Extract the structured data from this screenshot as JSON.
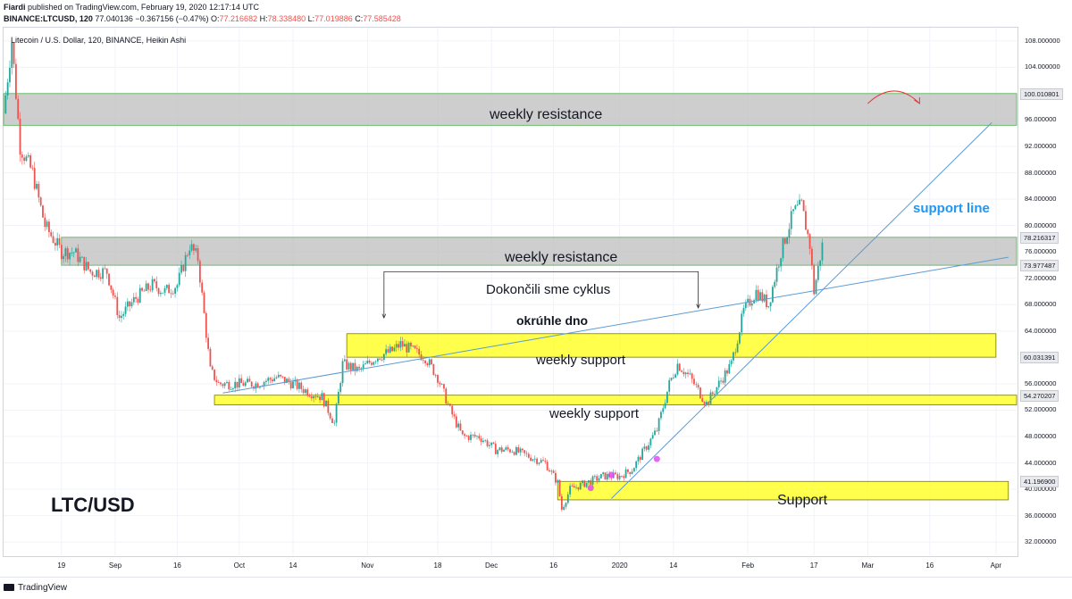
{
  "header": {
    "publisher": "Fiardi",
    "published_text": " published on TradingView.com, February 19, 2020 12:17:14 UTC",
    "symbol": "BINANCE:LTCUSD, 120",
    "last": "77.040136",
    "change": "−0.367156 (−0.47%)",
    "open_label": "O:",
    "open": "77.216682",
    "high_label": "H:",
    "high": "78.338480",
    "low_label": "L:",
    "low": "77.019886",
    "close_label": "C:",
    "close": "77.585428"
  },
  "footer": {
    "brand": "TradingView"
  },
  "colors": {
    "up": "#26a69a",
    "down": "#ef5350",
    "resistance_fill": "#bdbdbd",
    "support_fill": "#ffff00",
    "trendline": "#5b9bd5",
    "annotation_blue": "#2196f3",
    "alert_red": "#e53935"
  },
  "chart_data": {
    "type": "candlestick",
    "title": "Litecoin / U.S. Dollar, 120, BINANCE, Heikin Ashi",
    "ylim": [
      30,
      110
    ],
    "y_ticks": [
      "108.000000",
      "104.000000",
      "96.000000",
      "92.000000",
      "88.000000",
      "84.000000",
      "80.000000",
      "76.000000",
      "72.000000",
      "68.000000",
      "64.000000",
      "56.000000",
      "52.000000",
      "48.000000",
      "44.000000",
      "40.000000",
      "36.000000",
      "32.000000"
    ],
    "y_tick_values": [
      108,
      104,
      96,
      92,
      88,
      84,
      80,
      76,
      72,
      68,
      64,
      56,
      52,
      48,
      44,
      40,
      36,
      32
    ],
    "price_tags": [
      {
        "label": "100.010801",
        "value": 100.0108
      },
      {
        "label": "78.216317",
        "value": 78.2163
      },
      {
        "label": "73.977487",
        "value": 73.9775
      },
      {
        "label": "60.031391",
        "value": 60.0314
      },
      {
        "label": "54.270207",
        "value": 54.2702
      },
      {
        "label": "41.196900",
        "value": 41.1969
      }
    ],
    "x_ticks": [
      "19",
      "Sep",
      "16",
      "Oct",
      "14",
      "Nov",
      "18",
      "Dec",
      "16",
      "2020",
      "14",
      "Feb",
      "17",
      "Mar",
      "16",
      "Apr"
    ],
    "x_tick_dates": [
      "2019-08-19",
      "2019-09-01",
      "2019-09-16",
      "2019-10-01",
      "2019-10-14",
      "2019-11-01",
      "2019-11-18",
      "2019-12-01",
      "2019-12-16",
      "2020-01-01",
      "2020-01-14",
      "2020-02-01",
      "2020-02-17",
      "2020-03-01",
      "2020-03-16",
      "2020-04-01"
    ],
    "x_range": [
      "2019-08-05",
      "2020-04-06"
    ],
    "price_path": [
      [
        "2019-08-05",
        97
      ],
      [
        "2019-08-07",
        108
      ],
      [
        "2019-08-09",
        92
      ],
      [
        "2019-08-12",
        88
      ],
      [
        "2019-08-15",
        80
      ],
      [
        "2019-08-19",
        76
      ],
      [
        "2019-08-22",
        76
      ],
      [
        "2019-08-26",
        73
      ],
      [
        "2019-08-30",
        73
      ],
      [
        "2019-09-02",
        66
      ],
      [
        "2019-09-06",
        69
      ],
      [
        "2019-09-10",
        71
      ],
      [
        "2019-09-13",
        70
      ],
      [
        "2019-09-16",
        71
      ],
      [
        "2019-09-19",
        77
      ],
      [
        "2019-09-21",
        75
      ],
      [
        "2019-09-24",
        58
      ],
      [
        "2019-09-26",
        56
      ],
      [
        "2019-10-01",
        56
      ],
      [
        "2019-10-05",
        56
      ],
      [
        "2019-10-10",
        57
      ],
      [
        "2019-10-14",
        56
      ],
      [
        "2019-10-17",
        55
      ],
      [
        "2019-10-21",
        54
      ],
      [
        "2019-10-24",
        50
      ],
      [
        "2019-10-26",
        59
      ],
      [
        "2019-10-30",
        58
      ],
      [
        "2019-11-03",
        60
      ],
      [
        "2019-11-07",
        61
      ],
      [
        "2019-11-09",
        62
      ],
      [
        "2019-11-12",
        61
      ],
      [
        "2019-11-15",
        60
      ],
      [
        "2019-11-18",
        57
      ],
      [
        "2019-11-21",
        52
      ],
      [
        "2019-11-24",
        48
      ],
      [
        "2019-11-28",
        48
      ],
      [
        "2019-12-02",
        46
      ],
      [
        "2019-12-06",
        46
      ],
      [
        "2019-12-10",
        45
      ],
      [
        "2019-12-14",
        44
      ],
      [
        "2019-12-17",
        41
      ],
      [
        "2019-12-18",
        37
      ],
      [
        "2019-12-20",
        40
      ],
      [
        "2019-12-24",
        41
      ],
      [
        "2019-12-28",
        42
      ],
      [
        "2020-01-01",
        42
      ],
      [
        "2020-01-04",
        43
      ],
      [
        "2020-01-07",
        46
      ],
      [
        "2020-01-10",
        49
      ],
      [
        "2020-01-13",
        56
      ],
      [
        "2020-01-15",
        59
      ],
      [
        "2020-01-18",
        57
      ],
      [
        "2020-01-22",
        53
      ],
      [
        "2020-01-25",
        56
      ],
      [
        "2020-01-28",
        59
      ],
      [
        "2020-01-31",
        67
      ],
      [
        "2020-02-03",
        70
      ],
      [
        "2020-02-06",
        68
      ],
      [
        "2020-02-09",
        76
      ],
      [
        "2020-02-12",
        82
      ],
      [
        "2020-02-14",
        83
      ],
      [
        "2020-02-16",
        77
      ],
      [
        "2020-02-17",
        70
      ],
      [
        "2020-02-19",
        77
      ]
    ],
    "zones": [
      {
        "name": "weekly resistance",
        "from": "2019-08-05",
        "to": "2020-04-06",
        "low": 95.2,
        "high": 100.0108,
        "color": "resistance"
      },
      {
        "name": "weekly resistance",
        "from": "2019-08-19",
        "to": "2020-04-06",
        "low": 73.9775,
        "high": 78.2163,
        "color": "resistance"
      },
      {
        "name": "weekly support",
        "from": "2019-10-27",
        "to": "2020-04-01",
        "low": 60.0314,
        "high": 63.6,
        "color": "support"
      },
      {
        "name": "weekly support",
        "from": "2019-09-25",
        "to": "2020-04-06",
        "low": 52.8,
        "high": 54.2702,
        "color": "support"
      },
      {
        "name": "Support",
        "from": "2019-12-17",
        "to": "2020-04-04",
        "low": 38.4,
        "high": 41.1969,
        "color": "support"
      }
    ],
    "trendlines": [
      {
        "from": [
          "2019-09-27",
          54.6
        ],
        "to": [
          "2020-04-04",
          75.2
        ]
      },
      {
        "from": [
          "2019-12-30",
          38.6
        ],
        "to": [
          "2020-03-31",
          95.6
        ]
      }
    ],
    "annotations": {
      "zone1_label": "weekly resistance",
      "zone2_label": "weekly resistance",
      "support1_label": "weekly support",
      "support2_label": "weekly support",
      "support3_label": "Support",
      "cycle_label": "Dokončili sme cyklus",
      "bottom_label": "okrúhle dno",
      "support_line_label": "support line",
      "pair_label": "LTC/USD"
    }
  }
}
